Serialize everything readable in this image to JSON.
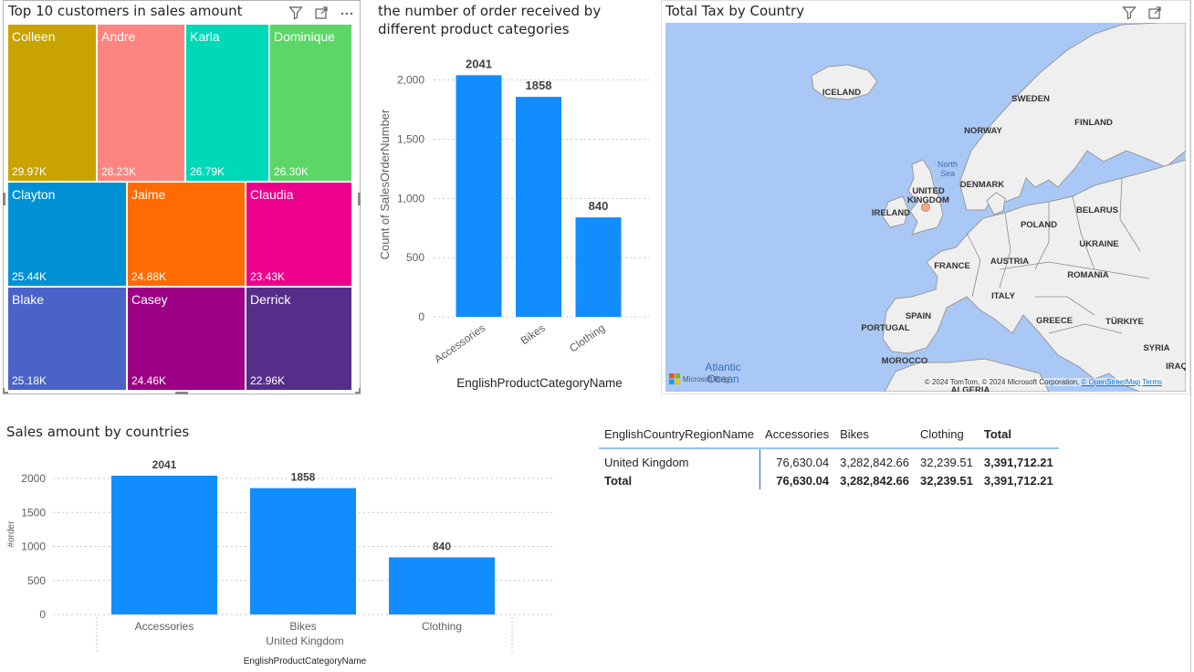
{
  "treemap": {
    "title": "Top 10 customers in sales amount",
    "cells": [
      {
        "name": "Colleen",
        "value": "29.97K",
        "color": "#C9A300"
      },
      {
        "name": "Andre",
        "value": "28.23K",
        "color": "#FD8580"
      },
      {
        "name": "Karla",
        "value": "26.79K",
        "color": "#00D9B8"
      },
      {
        "name": "Dominique",
        "value": "26.30K",
        "color": "#5BD667"
      },
      {
        "name": "Clayton",
        "value": "25.44K",
        "color": "#0091D5"
      },
      {
        "name": "Jaime",
        "value": "24.88K",
        "color": "#FF6B00"
      },
      {
        "name": "Claudia",
        "value": "23.43K",
        "color": "#EC008C"
      },
      {
        "name": "Blake",
        "value": "25.18K",
        "color": "#4A63C8"
      },
      {
        "name": "Casey",
        "value": "24.46K",
        "color": "#9B0085"
      },
      {
        "name": "Derrick",
        "value": "22.96K",
        "color": "#552E89"
      }
    ]
  },
  "chart_data": [
    {
      "type": "bar",
      "title": "the number of order received by different product categories",
      "xlabel": "EnglishProductCategoryName",
      "ylabel": "Count of SalesOrderNumber",
      "categories": [
        "Accessories",
        "Bikes",
        "Clothing"
      ],
      "values": [
        2041,
        1858,
        840
      ],
      "data_labels": [
        "2041",
        "1858",
        "840"
      ],
      "yticks": [
        "0",
        "500",
        "1,000",
        "1,500",
        "2,000"
      ],
      "ytick_values": [
        0,
        500,
        1000,
        1500,
        2000
      ],
      "ylim": [
        0,
        2100
      ],
      "color": "#118DFF",
      "grid": true
    },
    {
      "type": "bar",
      "title": "Sales amount by countries",
      "xlabel": "EnglishProductCategoryName",
      "ylabel": "#order",
      "group_label": "United Kingdom",
      "categories": [
        "Accessories",
        "Bikes",
        "Clothing"
      ],
      "values": [
        2041,
        1858,
        840
      ],
      "data_labels": [
        "2041",
        "1858",
        "840"
      ],
      "yticks": [
        "0",
        "500",
        "1000",
        "1500",
        "2000"
      ],
      "ytick_values": [
        0,
        500,
        1000,
        1500,
        2000
      ],
      "ylim": [
        0,
        2100
      ],
      "color": "#118DFF",
      "grid": true
    }
  ],
  "map": {
    "title": "Total Tax by Country",
    "labels": {
      "iceland": "ICELAND",
      "sweden": "SWEDEN",
      "finland": "FINLAND",
      "norway": "NORWAY",
      "north_sea": "North Sea",
      "denmark": "DENMARK",
      "uk": "UNITED KINGDOM",
      "ireland": "IRELAND",
      "belarus": "BELARUS",
      "poland": "POLAND",
      "ukraine": "UKRAINE",
      "france": "FRANCE",
      "austria": "AUSTRIA",
      "romania": "ROMANIA",
      "italy": "ITALY",
      "spain": "SPAIN",
      "portugal": "PORTUGAL",
      "greece": "GREECE",
      "turkiye": "TÜRKIYE",
      "syria": "SYRIA",
      "iraq": "IRAQ",
      "morocco": "MOROCCO",
      "algeria": "ALGERIA",
      "atlantic": "Atlantic Ocean"
    },
    "logo": "Microsoft Bing",
    "attribution": "© 2024 TomTom, © 2024 Microsoft Corporation,",
    "osm": "© OpenStreetMap",
    "terms": "Terms",
    "land_color": "#EFEFEF",
    "water_color": "#A9C8F5",
    "marker_color": "#F4A582"
  },
  "matrix": {
    "headers": [
      "EnglishCountryRegionName",
      "Accessories",
      "Bikes",
      "Clothing",
      "Total"
    ],
    "rows": [
      {
        "label": "United Kingdom",
        "values": [
          "76,630.04",
          "3,282,842.66",
          "32,239.51",
          "3,391,712.21"
        ]
      }
    ],
    "total": {
      "label": "Total",
      "values": [
        "76,630.04",
        "3,282,842.66",
        "32,239.51",
        "3,391,712.21"
      ]
    }
  }
}
